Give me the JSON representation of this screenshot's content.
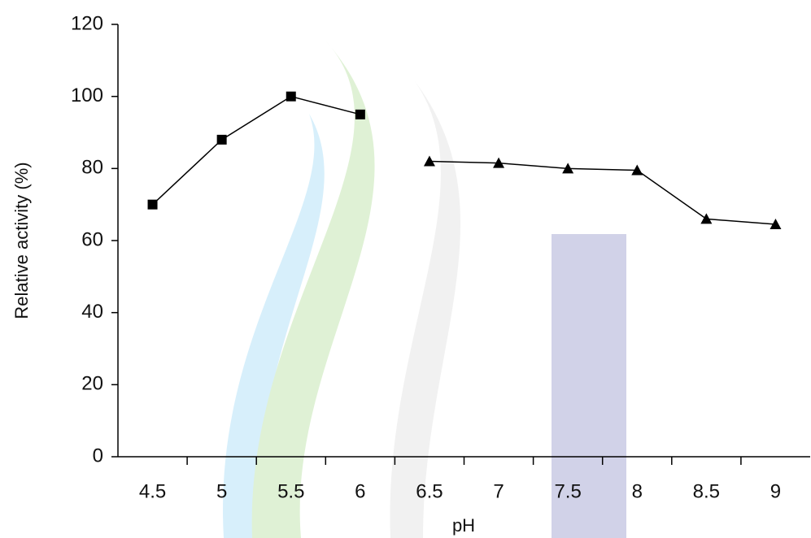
{
  "chart_data": {
    "type": "line",
    "xlabel": "pH",
    "ylabel": "Relative activity (%)",
    "categories": [
      "4.5",
      "5",
      "5.5",
      "6",
      "6.5",
      "7",
      "7.5",
      "8",
      "8.5",
      "9"
    ],
    "series": [
      {
        "color": "#000000",
        "marker": "square",
        "values": [
          70,
          88,
          100,
          95,
          null,
          null,
          null,
          null,
          null,
          null
        ]
      },
      {
        "color": "#000000",
        "marker": "triangle",
        "values": [
          null,
          null,
          null,
          null,
          82,
          81.5,
          80,
          79.5,
          66,
          64.5
        ]
      }
    ],
    "ylim": [
      0,
      120
    ],
    "yticks": [
      0,
      20,
      40,
      60,
      80,
      100,
      120
    ]
  }
}
